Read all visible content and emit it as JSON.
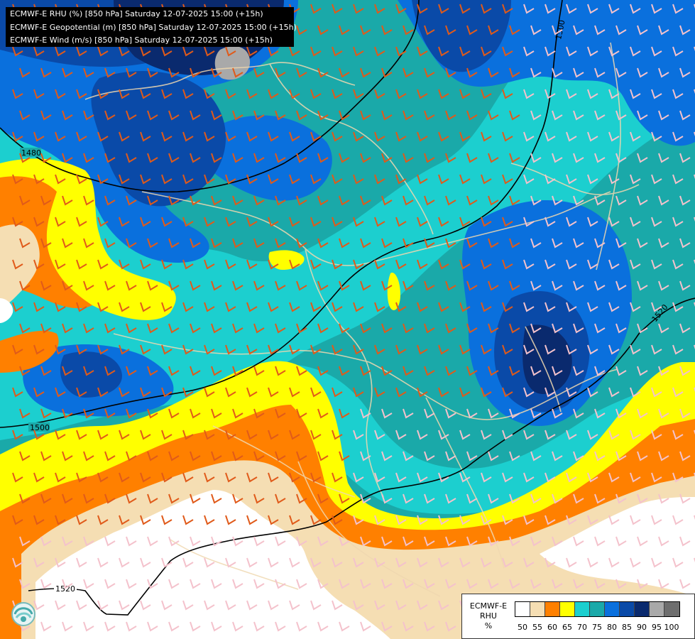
{
  "header": {
    "line1": "ECMWF-E RHU (%) [850 hPa] Saturday 12-07-2025 15:00 (+15h)",
    "line2": "ECMWF-E Geopotential (m) [850 hPa] Saturday 12-07-2025 15:00 (+15h)",
    "line3": "ECMWF-E Wind (m/s) [850 hPa] Saturday 12-07-2025 15:00 (+15h)"
  },
  "isolines": {
    "label_1480": "1480",
    "label_1500_top": "1500",
    "label_1500_left": "1500",
    "label_1520_right": "1520",
    "label_1520_bottom": "1520"
  },
  "legend": {
    "title_line1": "ECMWF-E",
    "title_line2": "RHU",
    "unit": "%",
    "classes": [
      {
        "value": "50",
        "color": "#ffffff"
      },
      {
        "value": "55",
        "color": "#f5deb3"
      },
      {
        "value": "60",
        "color": "#ff8000"
      },
      {
        "value": "65",
        "color": "#ffff00"
      },
      {
        "value": "70",
        "color": "#1ccfcf"
      },
      {
        "value": "75",
        "color": "#1aa9a9"
      },
      {
        "value": "80",
        "color": "#0a70dd"
      },
      {
        "value": "85",
        "color": "#0a4aa8"
      },
      {
        "value": "90",
        "color": "#0a2a6e"
      },
      {
        "value": "95",
        "color": "#a9a9a9"
      },
      {
        "value": "100",
        "color": "#6e6e6e"
      }
    ]
  },
  "map_region": "Central Europe / Balkans",
  "colors": {
    "contour": "#000000",
    "borders": "#f0d8b0",
    "barbs_strong": "#e05a1a",
    "barbs_weak": "#f4c2cc"
  }
}
